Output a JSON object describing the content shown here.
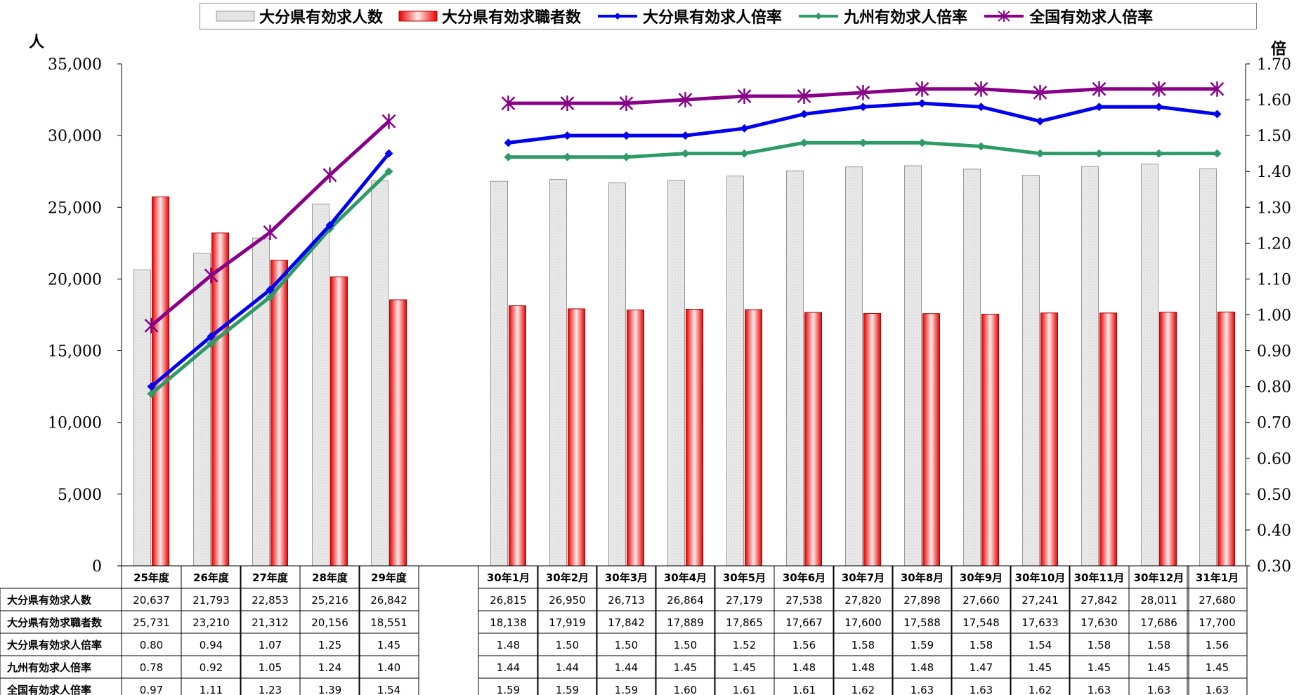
{
  "units": {
    "left": "人",
    "right": "倍"
  },
  "chart_data": {
    "type": "bar",
    "categories": [
      "25年度",
      "26年度",
      "27年度",
      "28年度",
      "29年度",
      "30年1月",
      "30年2月",
      "30年3月",
      "30年4月",
      "30年5月",
      "30年6月",
      "30年7月",
      "30年8月",
      "30年9月",
      "30年10月",
      "30年11月",
      "30年12月",
      "31年1月"
    ],
    "left_axis": {
      "ylim": [
        0,
        35000
      ],
      "ticks": [
        "0",
        "5,000",
        "10,000",
        "15,000",
        "20,000",
        "25,000",
        "30,000",
        "35,000"
      ]
    },
    "right_axis": {
      "ylim": [
        0.3,
        1.7
      ],
      "ticks": [
        "0.30",
        "0.40",
        "0.50",
        "0.60",
        "0.70",
        "0.80",
        "0.90",
        "1.00",
        "1.10",
        "1.20",
        "1.30",
        "1.40",
        "1.50",
        "1.60",
        "1.70"
      ]
    },
    "legend_position": "top",
    "bar_series": [
      {
        "name": "大分県有効求人数",
        "color": "#e4e4e4",
        "values": [
          20637,
          21793,
          22853,
          25216,
          26842,
          26815,
          26950,
          26713,
          26864,
          27179,
          27538,
          27820,
          27898,
          27660,
          27241,
          27842,
          28011,
          27680
        ],
        "labels": [
          "20,637",
          "21,793",
          "22,853",
          "25,216",
          "26,842",
          "26,815",
          "26,950",
          "26,713",
          "26,864",
          "27,179",
          "27,538",
          "27,820",
          "27,898",
          "27,660",
          "27,241",
          "27,842",
          "28,011",
          "27,680"
        ]
      },
      {
        "name": "大分県有効求職者数",
        "color": "#ee2222",
        "values": [
          25731,
          23210,
          21312,
          20156,
          18551,
          18138,
          17919,
          17842,
          17889,
          17865,
          17667,
          17600,
          17588,
          17548,
          17633,
          17630,
          17686,
          17700
        ],
        "labels": [
          "25,731",
          "23,210",
          "21,312",
          "20,156",
          "18,551",
          "18,138",
          "17,919",
          "17,842",
          "17,889",
          "17,865",
          "17,667",
          "17,600",
          "17,588",
          "17,548",
          "17,633",
          "17,630",
          "17,686",
          "17,700"
        ]
      }
    ],
    "line_series": [
      {
        "name": "大分県有効求人倍率",
        "color": "#0000ee",
        "marker": "diamond",
        "values": [
          0.8,
          0.94,
          1.07,
          1.25,
          1.45,
          1.48,
          1.5,
          1.5,
          1.5,
          1.52,
          1.56,
          1.58,
          1.59,
          1.58,
          1.54,
          1.58,
          1.58,
          1.56
        ],
        "labels": [
          "0.80",
          "0.94",
          "1.07",
          "1.25",
          "1.45",
          "1.48",
          "1.50",
          "1.50",
          "1.50",
          "1.52",
          "1.56",
          "1.58",
          "1.59",
          "1.58",
          "1.54",
          "1.58",
          "1.58",
          "1.56"
        ]
      },
      {
        "name": "九州有効求人倍率",
        "color": "#2e9a68",
        "marker": "diamond",
        "values": [
          0.78,
          0.92,
          1.05,
          1.24,
          1.4,
          1.44,
          1.44,
          1.44,
          1.45,
          1.45,
          1.48,
          1.48,
          1.48,
          1.47,
          1.45,
          1.45,
          1.45,
          1.45
        ],
        "labels": [
          "0.78",
          "0.92",
          "1.05",
          "1.24",
          "1.40",
          "1.44",
          "1.44",
          "1.44",
          "1.45",
          "1.45",
          "1.48",
          "1.48",
          "1.48",
          "1.47",
          "1.45",
          "1.45",
          "1.45",
          "1.45"
        ]
      },
      {
        "name": "全国有効求人倍率",
        "color": "#880088",
        "marker": "star",
        "values": [
          0.97,
          1.11,
          1.23,
          1.39,
          1.54,
          1.59,
          1.59,
          1.59,
          1.6,
          1.61,
          1.61,
          1.62,
          1.63,
          1.63,
          1.62,
          1.63,
          1.63,
          1.63
        ],
        "labels": [
          "0.97",
          "1.11",
          "1.23",
          "1.39",
          "1.54",
          "1.59",
          "1.59",
          "1.59",
          "1.60",
          "1.61",
          "1.61",
          "1.62",
          "1.63",
          "1.63",
          "1.62",
          "1.63",
          "1.63",
          "1.63"
        ]
      }
    ]
  }
}
